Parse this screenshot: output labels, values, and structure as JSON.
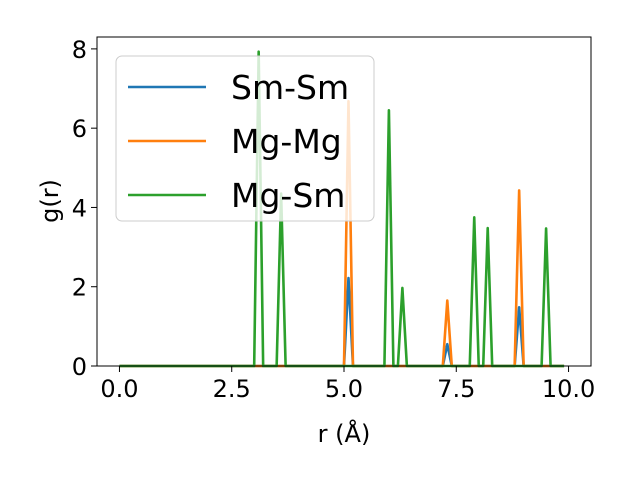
{
  "chart_data": {
    "type": "line",
    "xlabel": "r (Å)",
    "ylabel": "g(r)",
    "xlim": [
      -0.5,
      10.5
    ],
    "ylim": [
      0,
      8.3
    ],
    "xticks": [
      0.0,
      2.5,
      5.0,
      7.5,
      10.0
    ],
    "xtick_labels": [
      "0.0",
      "2.5",
      "5.0",
      "7.5",
      "10.0"
    ],
    "yticks": [
      0,
      2,
      4,
      6,
      8
    ],
    "ytick_labels": [
      "0",
      "2",
      "4",
      "6",
      "8"
    ],
    "grid": false,
    "legend_position": "top-left",
    "series": [
      {
        "name": "Sm-Sm",
        "color": "#1f77b4",
        "points": [
          [
            0.0,
            0
          ],
          [
            3.0,
            0
          ],
          [
            3.1,
            0
          ],
          [
            3.2,
            0
          ],
          [
            3.5,
            0
          ],
          [
            3.6,
            0
          ],
          [
            3.7,
            0
          ],
          [
            5.0,
            0
          ],
          [
            5.1,
            2.22
          ],
          [
            5.2,
            0
          ],
          [
            5.9,
            0
          ],
          [
            6.0,
            0
          ],
          [
            6.1,
            0
          ],
          [
            6.2,
            0
          ],
          [
            6.3,
            0
          ],
          [
            6.4,
            0
          ],
          [
            7.2,
            0
          ],
          [
            7.3,
            0.55
          ],
          [
            7.4,
            0
          ],
          [
            7.8,
            0
          ],
          [
            7.9,
            0
          ],
          [
            8.0,
            0
          ],
          [
            8.1,
            0
          ],
          [
            8.2,
            0
          ],
          [
            8.3,
            0
          ],
          [
            8.8,
            0
          ],
          [
            8.9,
            1.48
          ],
          [
            9.0,
            0
          ],
          [
            9.4,
            0
          ],
          [
            9.5,
            0
          ],
          [
            9.6,
            0
          ],
          [
            9.9,
            0
          ]
        ]
      },
      {
        "name": "Mg-Mg",
        "color": "#ff7f0e",
        "points": [
          [
            0.0,
            0
          ],
          [
            3.0,
            0
          ],
          [
            3.1,
            0
          ],
          [
            3.2,
            0
          ],
          [
            3.5,
            0
          ],
          [
            3.6,
            0
          ],
          [
            3.7,
            0
          ],
          [
            5.0,
            0
          ],
          [
            5.1,
            6.68
          ],
          [
            5.2,
            0
          ],
          [
            5.9,
            0
          ],
          [
            6.0,
            0
          ],
          [
            6.1,
            0
          ],
          [
            6.2,
            0
          ],
          [
            6.3,
            0
          ],
          [
            6.4,
            0
          ],
          [
            7.2,
            0
          ],
          [
            7.3,
            1.65
          ],
          [
            7.4,
            0
          ],
          [
            7.8,
            0
          ],
          [
            7.9,
            0
          ],
          [
            8.0,
            0
          ],
          [
            8.1,
            0
          ],
          [
            8.2,
            0
          ],
          [
            8.3,
            0
          ],
          [
            8.8,
            0
          ],
          [
            8.9,
            4.43
          ],
          [
            9.0,
            0
          ],
          [
            9.4,
            0
          ],
          [
            9.5,
            0
          ],
          [
            9.6,
            0
          ],
          [
            9.9,
            0
          ]
        ]
      },
      {
        "name": "Mg-Sm",
        "color": "#2ca02c",
        "points": [
          [
            0.0,
            0
          ],
          [
            3.0,
            0
          ],
          [
            3.1,
            7.93
          ],
          [
            3.2,
            0
          ],
          [
            3.5,
            0
          ],
          [
            3.6,
            4.35
          ],
          [
            3.7,
            0
          ],
          [
            5.0,
            0
          ],
          [
            5.1,
            0
          ],
          [
            5.2,
            0
          ],
          [
            5.9,
            0
          ],
          [
            6.0,
            6.45
          ],
          [
            6.1,
            0
          ],
          [
            6.2,
            0
          ],
          [
            6.3,
            1.97
          ],
          [
            6.4,
            0
          ],
          [
            7.2,
            0
          ],
          [
            7.3,
            0
          ],
          [
            7.4,
            0
          ],
          [
            7.8,
            0
          ],
          [
            7.9,
            3.75
          ],
          [
            8.0,
            0
          ],
          [
            8.1,
            0
          ],
          [
            8.2,
            3.48
          ],
          [
            8.3,
            0
          ],
          [
            8.8,
            0
          ],
          [
            8.9,
            0
          ],
          [
            9.0,
            0
          ],
          [
            9.4,
            0
          ],
          [
            9.5,
            3.47
          ],
          [
            9.6,
            0
          ],
          [
            9.9,
            0
          ]
        ]
      }
    ]
  }
}
